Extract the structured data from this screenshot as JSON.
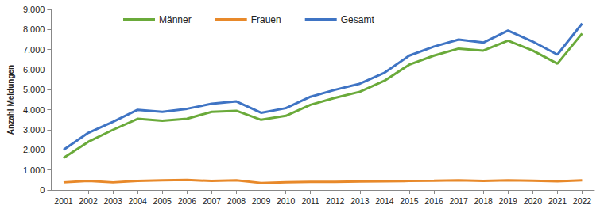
{
  "chart_data": {
    "type": "line",
    "y_label": "Anzahl Meldungen",
    "categories": [
      "2001",
      "2002",
      "2003",
      "2004",
      "2005",
      "2006",
      "2007",
      "2008",
      "2009",
      "2010",
      "2011",
      "2012",
      "2013",
      "2014",
      "2015",
      "2016",
      "2017",
      "2018",
      "2019",
      "2020",
      "2021",
      "2022"
    ],
    "series": [
      {
        "name": "Männer",
        "color": "#6aaa3a",
        "values": [
          1600,
          2400,
          3000,
          3550,
          3450,
          3550,
          3900,
          3950,
          3500,
          3700,
          4250,
          4600,
          4900,
          5450,
          6250,
          6700,
          7050,
          6950,
          7450,
          6950,
          6300,
          7800
        ]
      },
      {
        "name": "Frauen",
        "color": "#e8892a",
        "values": [
          380,
          450,
          380,
          450,
          480,
          500,
          450,
          480,
          350,
          380,
          400,
          400,
          420,
          430,
          450,
          460,
          480,
          450,
          480,
          460,
          430,
          480
        ]
      },
      {
        "name": "Gesamt",
        "color": "#3f74c4",
        "values": [
          2000,
          2850,
          3400,
          4000,
          3900,
          4050,
          4300,
          4420,
          3850,
          4080,
          4650,
          5000,
          5300,
          5850,
          6700,
          7150,
          7500,
          7350,
          7950,
          7400,
          6750,
          8300
        ]
      }
    ],
    "ylim": [
      0,
      9000
    ],
    "yticks": [
      0,
      {
        "value": 1000,
        "label": "1.000"
      },
      {
        "value": 2000,
        "label": "2.000"
      },
      {
        "value": 3000,
        "label": "3.000"
      },
      {
        "value": 4000,
        "label": "4.000"
      },
      {
        "value": 5000,
        "label": "5.000"
      },
      {
        "value": 6000,
        "label": "6.000"
      },
      {
        "value": 7000,
        "label": "7.000"
      },
      {
        "value": 8000,
        "label": "8.000"
      },
      {
        "value": 9000,
        "label": "9.000"
      }
    ],
    "grid": false,
    "legend": "top-left"
  }
}
